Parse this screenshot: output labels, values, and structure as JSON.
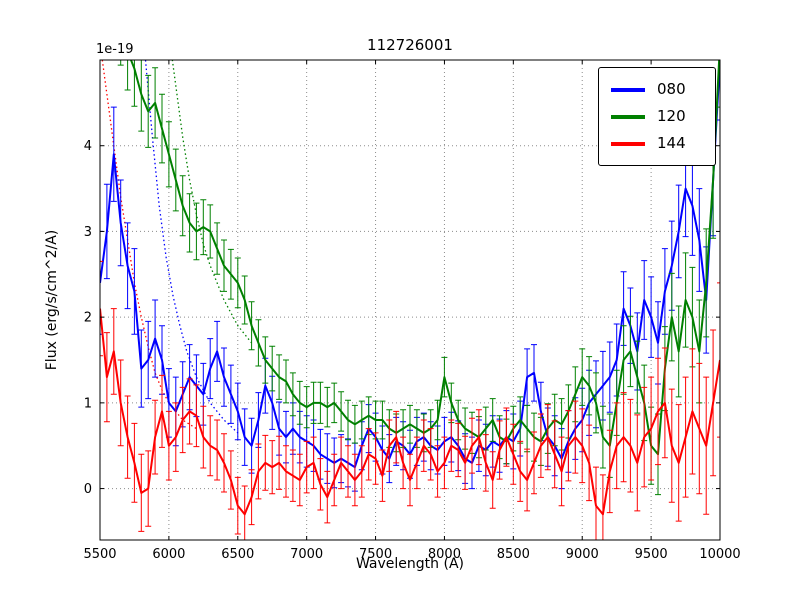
{
  "chart_data": {
    "type": "line",
    "title": "112726001",
    "xlabel": "Wavelength (A)",
    "ylabel": "Flux (erg/s/cm^2/A)",
    "y_offset_text": "1e-19",
    "xlim": [
      5500,
      10000
    ],
    "ylim": [
      -0.6,
      5.0
    ],
    "xticks": [
      5500,
      6000,
      6500,
      7000,
      7500,
      8000,
      8500,
      9000,
      9500,
      10000
    ],
    "yticks": [
      0,
      1,
      2,
      3,
      4
    ],
    "grid": true,
    "grid_style": "dotted",
    "legend_position": "upper right",
    "x": [
      5500,
      5550,
      5600,
      5650,
      5700,
      5750,
      5800,
      5850,
      5900,
      5950,
      6000,
      6050,
      6100,
      6150,
      6200,
      6250,
      6300,
      6350,
      6400,
      6450,
      6500,
      6550,
      6600,
      6650,
      6700,
      6750,
      6800,
      6850,
      6900,
      6950,
      7000,
      7050,
      7100,
      7150,
      7200,
      7250,
      7300,
      7350,
      7400,
      7450,
      7500,
      7550,
      7600,
      7650,
      7700,
      7750,
      7800,
      7850,
      7900,
      7950,
      8000,
      8050,
      8100,
      8150,
      8200,
      8250,
      8300,
      8350,
      8400,
      8450,
      8500,
      8550,
      8600,
      8650,
      8700,
      8750,
      8800,
      8850,
      8900,
      8950,
      9000,
      9050,
      9100,
      9150,
      9200,
      9250,
      9300,
      9350,
      9400,
      9450,
      9500,
      9550,
      9600,
      9650,
      9700,
      9750,
      9800,
      9850,
      9900,
      9950,
      10000
    ],
    "series": [
      {
        "name": "080",
        "color": "#0000ff",
        "values": [
          2.4,
          3.0,
          3.9,
          3.1,
          2.6,
          2.3,
          1.4,
          1.5,
          1.75,
          1.5,
          1.0,
          0.9,
          1.1,
          1.3,
          1.2,
          1.1,
          1.4,
          1.6,
          1.3,
          1.1,
          0.9,
          0.6,
          0.5,
          0.8,
          1.2,
          1.0,
          0.7,
          0.6,
          0.7,
          0.6,
          0.55,
          0.5,
          0.4,
          0.35,
          0.3,
          0.35,
          0.3,
          0.25,
          0.5,
          0.7,
          0.6,
          0.45,
          0.35,
          0.55,
          0.5,
          0.4,
          0.55,
          0.6,
          0.5,
          0.45,
          0.55,
          0.6,
          0.5,
          0.35,
          0.3,
          0.5,
          0.45,
          0.55,
          0.5,
          0.6,
          0.55,
          0.7,
          1.3,
          1.35,
          0.9,
          0.6,
          0.5,
          0.35,
          0.55,
          0.7,
          0.8,
          1.0,
          1.1,
          1.2,
          1.3,
          1.5,
          2.1,
          1.9,
          1.6,
          2.2,
          2.0,
          1.7,
          2.3,
          2.6,
          3.0,
          3.5,
          3.3,
          2.9,
          2.2,
          3.6,
          5.0
        ],
        "errors": [
          0.6,
          0.55,
          0.55,
          0.5,
          0.5,
          0.5,
          0.45,
          0.45,
          0.45,
          0.4,
          0.4,
          0.4,
          0.38,
          0.38,
          0.36,
          0.36,
          0.35,
          0.35,
          0.34,
          0.34,
          0.33,
          0.33,
          0.32,
          0.32,
          0.32,
          0.31,
          0.31,
          0.3,
          0.3,
          0.3,
          0.3,
          0.3,
          0.29,
          0.29,
          0.29,
          0.28,
          0.28,
          0.28,
          0.28,
          0.28,
          0.28,
          0.28,
          0.28,
          0.28,
          0.28,
          0.28,
          0.28,
          0.28,
          0.28,
          0.28,
          0.28,
          0.29,
          0.29,
          0.29,
          0.3,
          0.3,
          0.3,
          0.3,
          0.31,
          0.31,
          0.32,
          0.32,
          0.33,
          0.33,
          0.34,
          0.34,
          0.35,
          0.35,
          0.36,
          0.36,
          0.37,
          0.38,
          0.39,
          0.4,
          0.41,
          0.42,
          0.43,
          0.44,
          0.45,
          0.46,
          0.47,
          0.48,
          0.5,
          0.52,
          0.54,
          0.56,
          0.58,
          0.6,
          0.62,
          0.65,
          0.7
        ]
      },
      {
        "name": "120",
        "color": "#008000",
        "values": [
          6.5,
          6.2,
          5.8,
          5.4,
          5.1,
          4.9,
          4.6,
          4.4,
          4.5,
          4.2,
          3.9,
          3.6,
          3.3,
          3.1,
          3.0,
          3.05,
          3.0,
          2.8,
          2.6,
          2.5,
          2.4,
          2.2,
          1.9,
          1.7,
          1.5,
          1.4,
          1.3,
          1.25,
          1.1,
          1.0,
          0.95,
          1.0,
          1.0,
          0.95,
          1.0,
          0.9,
          0.8,
          0.75,
          0.8,
          0.85,
          0.8,
          0.8,
          0.7,
          0.65,
          0.7,
          0.75,
          0.7,
          0.65,
          0.7,
          0.8,
          1.3,
          1.0,
          0.8,
          0.7,
          0.65,
          0.6,
          0.7,
          0.8,
          0.6,
          0.55,
          0.7,
          0.8,
          0.7,
          0.6,
          0.55,
          0.7,
          0.8,
          0.75,
          0.9,
          1.1,
          1.3,
          1.2,
          1.0,
          0.6,
          0.5,
          1.0,
          1.5,
          1.6,
          1.3,
          1.0,
          0.5,
          0.4,
          1.4,
          2.0,
          1.6,
          2.2,
          2.0,
          1.6,
          2.4,
          3.6,
          5.2
        ],
        "errors": [
          0.5,
          0.5,
          0.48,
          0.46,
          0.45,
          0.44,
          0.43,
          0.42,
          0.41,
          0.4,
          0.38,
          0.36,
          0.35,
          0.34,
          0.33,
          0.32,
          0.31,
          0.3,
          0.3,
          0.29,
          0.29,
          0.28,
          0.28,
          0.27,
          0.27,
          0.26,
          0.26,
          0.25,
          0.25,
          0.25,
          0.24,
          0.24,
          0.24,
          0.23,
          0.23,
          0.23,
          0.23,
          0.22,
          0.22,
          0.22,
          0.22,
          0.22,
          0.22,
          0.22,
          0.22,
          0.22,
          0.22,
          0.22,
          0.22,
          0.23,
          0.23,
          0.23,
          0.23,
          0.24,
          0.24,
          0.24,
          0.25,
          0.25,
          0.25,
          0.26,
          0.26,
          0.27,
          0.27,
          0.28,
          0.28,
          0.29,
          0.3,
          0.3,
          0.31,
          0.32,
          0.33,
          0.34,
          0.35,
          0.36,
          0.37,
          0.38,
          0.4,
          0.41,
          0.42,
          0.44,
          0.45,
          0.47,
          0.49,
          0.51,
          0.53,
          0.55,
          0.58,
          0.6,
          0.63,
          0.68,
          0.75
        ]
      },
      {
        "name": "144",
        "color": "#ff0000",
        "values": [
          2.1,
          1.3,
          1.6,
          1.0,
          0.6,
          0.3,
          -0.05,
          0.0,
          0.6,
          0.9,
          0.5,
          0.6,
          0.8,
          0.9,
          0.85,
          0.6,
          0.5,
          0.45,
          0.3,
          0.1,
          -0.2,
          -0.3,
          -0.1,
          0.2,
          0.3,
          0.25,
          0.3,
          0.2,
          0.15,
          0.1,
          0.25,
          0.3,
          0.05,
          -0.1,
          0.1,
          0.3,
          0.2,
          0.1,
          0.2,
          0.4,
          0.35,
          0.15,
          0.5,
          0.6,
          0.3,
          0.1,
          0.3,
          0.5,
          0.4,
          0.2,
          0.3,
          0.5,
          0.45,
          0.3,
          0.5,
          0.6,
          0.3,
          0.1,
          0.45,
          0.6,
          0.4,
          0.2,
          0.1,
          0.3,
          0.5,
          0.6,
          0.4,
          0.2,
          0.5,
          0.6,
          0.5,
          0.3,
          -0.2,
          -0.3,
          0.2,
          0.5,
          0.6,
          0.5,
          0.3,
          0.6,
          0.7,
          0.9,
          1.0,
          0.5,
          0.3,
          0.6,
          0.9,
          0.7,
          0.5,
          1.0,
          1.5
        ],
        "errors": [
          0.55,
          0.52,
          0.5,
          0.5,
          0.48,
          0.46,
          0.45,
          0.44,
          0.43,
          0.42,
          0.4,
          0.4,
          0.38,
          0.38,
          0.36,
          0.36,
          0.35,
          0.35,
          0.34,
          0.34,
          0.33,
          0.33,
          0.32,
          0.32,
          0.32,
          0.31,
          0.31,
          0.3,
          0.3,
          0.3,
          0.3,
          0.3,
          0.3,
          0.3,
          0.3,
          0.3,
          0.3,
          0.3,
          0.3,
          0.3,
          0.3,
          0.3,
          0.3,
          0.3,
          0.3,
          0.3,
          0.3,
          0.3,
          0.3,
          0.3,
          0.3,
          0.3,
          0.31,
          0.31,
          0.32,
          0.32,
          0.33,
          0.33,
          0.34,
          0.34,
          0.35,
          0.35,
          0.36,
          0.36,
          0.37,
          0.38,
          0.39,
          0.4,
          0.41,
          0.42,
          0.43,
          0.44,
          0.45,
          0.46,
          0.48,
          0.5,
          0.52,
          0.54,
          0.56,
          0.58,
          0.6,
          0.62,
          0.64,
          0.66,
          0.68,
          0.7,
          0.73,
          0.76,
          0.8,
          0.85,
          0.9
        ]
      }
    ],
    "dotted_series": [
      {
        "name": "080-dotted",
        "color": "#0000ff",
        "x": [
          5780,
          5830,
          5880,
          5930,
          5980,
          6030,
          6080,
          6130,
          6200,
          6300,
          6400,
          6500
        ],
        "values": [
          6.0,
          5.0,
          4.1,
          3.3,
          2.7,
          2.25,
          1.9,
          1.6,
          1.3,
          1.0,
          0.8,
          0.65
        ]
      },
      {
        "name": "120-dotted",
        "color": "#008000",
        "x": [
          5950,
          6000,
          6050,
          6100,
          6150,
          6200,
          6250,
          6300,
          6400,
          6500,
          6600
        ],
        "values": [
          6.0,
          5.3,
          4.7,
          4.1,
          3.6,
          3.2,
          2.85,
          2.6,
          2.2,
          1.9,
          1.7
        ]
      },
      {
        "name": "144-dotted",
        "color": "#ff0000",
        "x": [
          5500,
          5550,
          5600,
          5650,
          5700,
          5750,
          5800,
          5850,
          5900,
          5950,
          6000,
          6100,
          6200
        ],
        "values": [
          5.2,
          4.6,
          4.0,
          3.4,
          2.9,
          2.4,
          2.0,
          1.65,
          1.35,
          1.15,
          1.0,
          0.8,
          0.7
        ]
      }
    ]
  }
}
